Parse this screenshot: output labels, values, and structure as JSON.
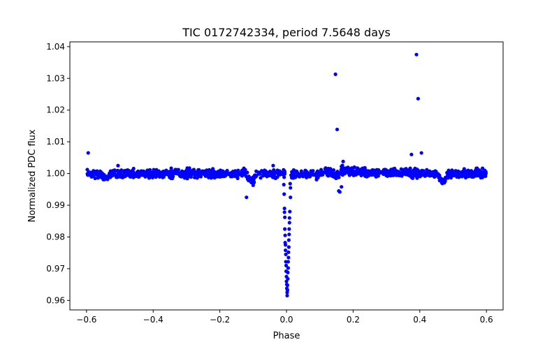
{
  "chart_data": {
    "type": "scatter",
    "title": "TIC 0172742334, period 7.5648 days",
    "xlabel": "Phase",
    "ylabel": "Normalized PDC flux",
    "xlim": [
      -0.65,
      0.65
    ],
    "ylim": [
      0.957,
      1.0415
    ],
    "xticks": [
      -0.6,
      -0.4,
      -0.2,
      0.0,
      0.2,
      0.4,
      0.6
    ],
    "xtick_labels": [
      "−0.6",
      "−0.4",
      "−0.2",
      "0.0",
      "0.2",
      "0.4",
      "0.6"
    ],
    "yticks": [
      0.96,
      0.97,
      0.98,
      0.99,
      1.0,
      1.01,
      1.02,
      1.03,
      1.04
    ],
    "ytick_labels": [
      "0.96",
      "0.97",
      "0.98",
      "0.99",
      "1.00",
      "1.01",
      "1.02",
      "1.03",
      "1.04"
    ],
    "color": "#0000ff",
    "grid": false,
    "baseline": {
      "x_start": -0.6,
      "x_end": 0.6,
      "center": 1.0,
      "spread": 0.0012,
      "count": 1300,
      "seed": 17,
      "gap": [
        -0.005,
        0.012
      ],
      "local_dips": [
        {
          "x": -0.545,
          "width": 0.012,
          "depth": 0.0015
        },
        {
          "x": -0.105,
          "width": 0.01,
          "depth": 0.0025
        },
        {
          "x": 0.15,
          "width": 0.012,
          "depth": 0.0012
        },
        {
          "x": 0.47,
          "width": 0.012,
          "depth": 0.0025
        }
      ],
      "local_bumps": [
        {
          "x": 0.175,
          "width": 0.05,
          "height": 0.0009
        },
        {
          "x": 0.3,
          "width": 0.06,
          "height": 0.0004
        }
      ]
    },
    "points": [
      {
        "x": -0.595,
        "y": 1.0065
      },
      {
        "x": -0.12,
        "y": 0.9925
      },
      {
        "x": -0.1,
        "y": 0.9963
      },
      {
        "x": -0.098,
        "y": 0.9972
      },
      {
        "x": -0.04,
        "y": 1.0025
      },
      {
        "x": 0.012,
        "y": 0.9955
      },
      {
        "x": 0.012,
        "y": 0.9925
      },
      {
        "x": 0.147,
        "y": 1.0313
      },
      {
        "x": 0.152,
        "y": 1.0139
      },
      {
        "x": 0.157,
        "y": 0.9945
      },
      {
        "x": 0.16,
        "y": 0.9942
      },
      {
        "x": 0.165,
        "y": 0.9958
      },
      {
        "x": 0.17,
        "y": 1.0038
      },
      {
        "x": 0.375,
        "y": 1.006
      },
      {
        "x": 0.39,
        "y": 1.0375
      },
      {
        "x": 0.395,
        "y": 1.0236
      },
      {
        "x": 0.405,
        "y": 1.0065
      },
      {
        "x": -0.008,
        "y": 0.9965
      },
      {
        "x": -0.006,
        "y": 0.989
      },
      {
        "x": -0.006,
        "y": 0.9878
      },
      {
        "x": -0.005,
        "y": 0.9862
      },
      {
        "x": -0.005,
        "y": 0.9825
      },
      {
        "x": -0.004,
        "y": 0.9805
      },
      {
        "x": -0.004,
        "y": 0.9782
      },
      {
        "x": -0.003,
        "y": 0.9775
      },
      {
        "x": -0.003,
        "y": 0.9758
      },
      {
        "x": -0.002,
        "y": 0.9745
      },
      {
        "x": -0.002,
        "y": 0.9722
      },
      {
        "x": -0.001,
        "y": 0.971
      },
      {
        "x": -0.001,
        "y": 0.9692
      },
      {
        "x": 0.0,
        "y": 0.9675
      },
      {
        "x": 0.0,
        "y": 0.966
      },
      {
        "x": 0.001,
        "y": 0.965
      },
      {
        "x": 0.001,
        "y": 0.9638
      },
      {
        "x": 0.002,
        "y": 0.9625
      },
      {
        "x": 0.002,
        "y": 0.9615
      },
      {
        "x": 0.003,
        "y": 0.9632
      },
      {
        "x": 0.003,
        "y": 0.9648
      },
      {
        "x": 0.004,
        "y": 0.9668
      },
      {
        "x": 0.004,
        "y": 0.9688
      },
      {
        "x": 0.005,
        "y": 0.9702
      },
      {
        "x": 0.005,
        "y": 0.9722
      },
      {
        "x": 0.006,
        "y": 0.9735
      },
      {
        "x": 0.006,
        "y": 0.9752
      },
      {
        "x": 0.007,
        "y": 0.9768
      },
      {
        "x": 0.007,
        "y": 0.979
      },
      {
        "x": 0.008,
        "y": 0.9808
      },
      {
        "x": 0.008,
        "y": 0.9825
      },
      {
        "x": 0.009,
        "y": 0.9845
      },
      {
        "x": 0.009,
        "y": 0.986
      },
      {
        "x": 0.01,
        "y": 0.988
      },
      {
        "x": -0.007,
        "y": 0.9935
      },
      {
        "x": 0.011,
        "y": 0.9968
      }
    ]
  }
}
